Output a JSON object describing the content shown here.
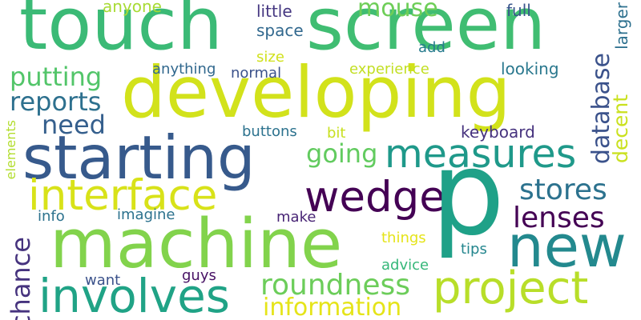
{
  "words": [
    {
      "key": "touch",
      "text": "touch",
      "color": "#3bba76"
    },
    {
      "key": "screen",
      "text": "screen",
      "color": "#40bd72"
    },
    {
      "key": "developing",
      "text": "developing",
      "color": "#d2e21b"
    },
    {
      "key": "p",
      "text": "p",
      "color": "#1fa188"
    },
    {
      "key": "machine",
      "text": "machine",
      "color": "#82d34c"
    },
    {
      "key": "starting",
      "text": "starting",
      "color": "#375a8c"
    },
    {
      "key": "interface",
      "text": "interface",
      "color": "#d8e219"
    },
    {
      "key": "measures",
      "text": "measures",
      "color": "#1f998a"
    },
    {
      "key": "wedge",
      "text": "wedge",
      "color": "#440154"
    },
    {
      "key": "project",
      "text": "project",
      "color": "#b8de29"
    },
    {
      "key": "new",
      "text": "new",
      "color": "#23898e"
    },
    {
      "key": "involves",
      "text": "involves",
      "color": "#20a386"
    },
    {
      "key": "roundness",
      "text": "roundness",
      "color": "#6ccd5a"
    },
    {
      "key": "information",
      "text": "information",
      "color": "#e5e419"
    },
    {
      "key": "lenses",
      "text": "lenses",
      "color": "#440154"
    },
    {
      "key": "stores",
      "text": "stores",
      "color": "#2c728e"
    },
    {
      "key": "database",
      "text": "database",
      "color": "#3b528b"
    },
    {
      "key": "going",
      "text": "going",
      "color": "#62cb5f"
    },
    {
      "key": "putting",
      "text": "putting",
      "color": "#52c569"
    },
    {
      "key": "reports",
      "text": "reports",
      "color": "#2d708e"
    },
    {
      "key": "need",
      "text": "need",
      "color": "#355f8d"
    },
    {
      "key": "chance",
      "text": "chance",
      "color": "#46337e"
    },
    {
      "key": "mouse",
      "text": "mouse",
      "color": "#6ece58"
    },
    {
      "key": "decent",
      "text": "decent",
      "color": "#cae11f"
    },
    {
      "key": "keyboard",
      "text": "keyboard",
      "color": "#46327e"
    },
    {
      "key": "larger",
      "text": "larger",
      "color": "#2d708e"
    },
    {
      "key": "anyone",
      "text": "anyone",
      "color": "#a8db34"
    },
    {
      "key": "little",
      "text": "little",
      "color": "#453781"
    },
    {
      "key": "full",
      "text": "full",
      "color": "#39568c"
    },
    {
      "key": "space",
      "text": "space",
      "color": "#31688e"
    },
    {
      "key": "add",
      "text": "add",
      "color": "#287c8e"
    },
    {
      "key": "size",
      "text": "size",
      "color": "#d0e11c"
    },
    {
      "key": "anything",
      "text": "anything",
      "color": "#31688e"
    },
    {
      "key": "experience",
      "text": "experience",
      "color": "#c2df23"
    },
    {
      "key": "looking",
      "text": "looking",
      "color": "#2a788e"
    },
    {
      "key": "normal",
      "text": "normal",
      "color": "#3b528b"
    },
    {
      "key": "buttons",
      "text": "buttons",
      "color": "#2c728e"
    },
    {
      "key": "bit",
      "text": "bit",
      "color": "#c8e020"
    },
    {
      "key": "elements",
      "text": "elements",
      "color": "#b2dd2d"
    },
    {
      "key": "info",
      "text": "info",
      "color": "#2c728e"
    },
    {
      "key": "imagine",
      "text": "imagine",
      "color": "#2c728e"
    },
    {
      "key": "make",
      "text": "make",
      "color": "#482475"
    },
    {
      "key": "things",
      "text": "things",
      "color": "#e5e419"
    },
    {
      "key": "tips",
      "text": "tips",
      "color": "#24868e"
    },
    {
      "key": "advice",
      "text": "advice",
      "color": "#35b779"
    },
    {
      "key": "want",
      "text": "want",
      "color": "#3b528b"
    },
    {
      "key": "guys",
      "text": "guys",
      "color": "#471164"
    }
  ]
}
